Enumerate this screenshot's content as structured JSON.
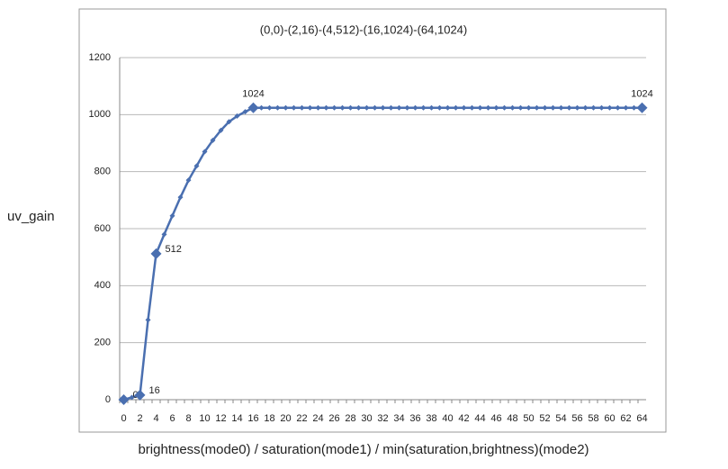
{
  "chart_data": {
    "type": "line",
    "title": "(0,0)-(2,16)-(4,512)-(16,1024)-(64,1024)",
    "ylabel": "uv_gain",
    "xlabel": "brightness(mode0) / saturation(mode1) /  min(saturation,brightness)(mode2)",
    "categories": [
      "0",
      null,
      "2",
      null,
      "4",
      null,
      "6",
      null,
      "8",
      null,
      "10",
      null,
      "12",
      null,
      "14",
      null,
      "16",
      null,
      "18",
      null,
      "20",
      null,
      "22",
      null,
      "24",
      null,
      "26",
      null,
      "28",
      null,
      "30",
      null,
      "32",
      null,
      "34",
      null,
      "36",
      null,
      "38",
      null,
      "40",
      null,
      "42",
      null,
      "44",
      null,
      "46",
      null,
      "48",
      null,
      "50",
      null,
      "52",
      null,
      "54",
      null,
      "56",
      null,
      "58",
      null,
      "60",
      null,
      "62",
      null,
      "64"
    ],
    "series": [
      {
        "color": "#4a6fb0",
        "values": [
          0,
          8,
          16,
          280,
          512,
          580,
          645,
          710,
          770,
          820,
          870,
          910,
          945,
          975,
          995,
          1010,
          1024,
          1024,
          1024,
          1024,
          1024,
          1024,
          1024,
          1024,
          1024,
          1024,
          1024,
          1024,
          1024,
          1024,
          1024,
          1024,
          1024,
          1024,
          1024,
          1024,
          1024,
          1024,
          1024,
          1024,
          1024,
          1024,
          1024,
          1024,
          1024,
          1024,
          1024,
          1024,
          1024,
          1024,
          1024,
          1024,
          1024,
          1024,
          1024,
          1024,
          1024,
          1024,
          1024,
          1024,
          1024,
          1024,
          1024,
          1024,
          1024
        ],
        "value_labels": [
          "0",
          null,
          "16",
          null,
          "512",
          null,
          null,
          null,
          null,
          null,
          null,
          null,
          null,
          null,
          null,
          null,
          "1024",
          null,
          null,
          null,
          null,
          null,
          null,
          null,
          null,
          null,
          null,
          null,
          null,
          null,
          null,
          null,
          null,
          null,
          null,
          null,
          null,
          null,
          null,
          null,
          null,
          null,
          null,
          null,
          null,
          null,
          null,
          null,
          null,
          null,
          null,
          null,
          null,
          null,
          null,
          null,
          null,
          null,
          null,
          null,
          null,
          null,
          null,
          null,
          "1024"
        ]
      }
    ],
    "ylim": [
      0,
      1200
    ],
    "yticks": [
      0,
      200,
      400,
      600,
      800,
      1000,
      1200
    ],
    "grid": true
  }
}
